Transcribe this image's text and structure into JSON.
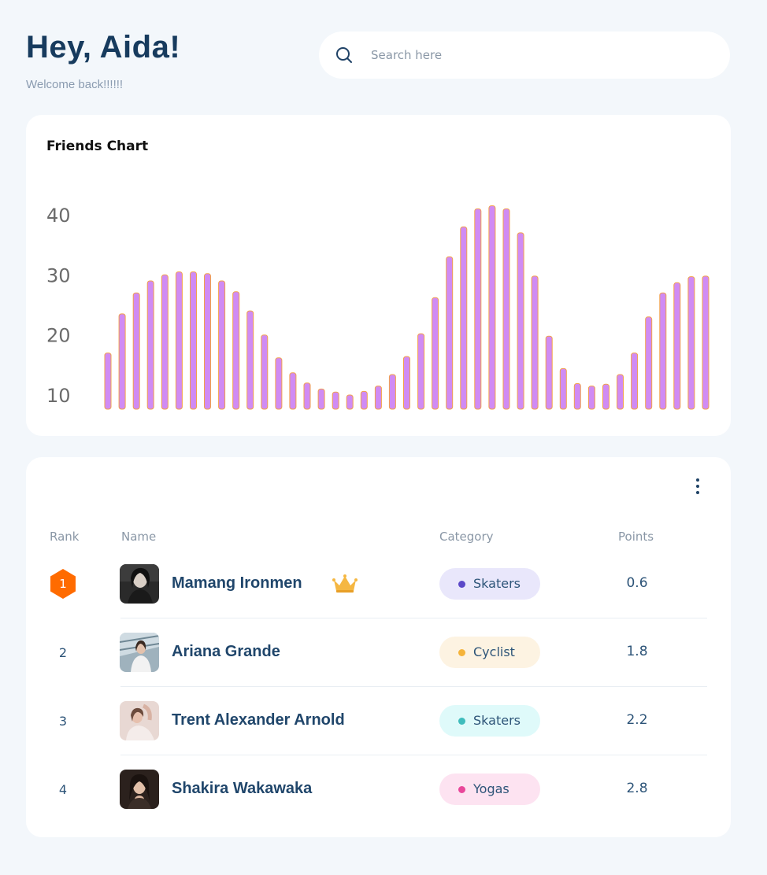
{
  "header": {
    "title": "Hey, Aida!",
    "subtitle": "Welcome back!!!!!!"
  },
  "search": {
    "placeholder": "Search here",
    "value": "",
    "icon": "search-icon"
  },
  "chart_card": {
    "title": "Friends Chart"
  },
  "chart_data": {
    "type": "bar",
    "title": "Friends Chart",
    "xlabel": "",
    "ylabel": "",
    "ylim": [
      8,
      42
    ],
    "yticks": [
      10,
      20,
      30,
      40
    ],
    "grid": false,
    "bar_color": "#d08bf4",
    "bar_edge_color": "#f2a14a",
    "values": [
      17,
      23.5,
      27,
      29,
      30,
      30.5,
      30.5,
      30.2,
      29,
      27.2,
      24,
      20,
      16.2,
      13.7,
      12,
      11,
      10.5,
      10,
      10.6,
      11.5,
      13.4,
      16.4,
      20.2,
      26.2,
      33,
      38,
      41,
      41.5,
      41,
      37,
      29.8,
      19.8,
      14.4,
      11.9,
      11.5,
      11.8,
      13.4,
      17,
      23,
      27,
      28.7,
      29.7,
      29.8
    ]
  },
  "table": {
    "more_icon": "more-vertical-icon",
    "headers": {
      "rank": "Rank",
      "name": "Name",
      "category": "Category",
      "points": "Points"
    },
    "rows": [
      {
        "rank": "1",
        "name": "Mamang Ironmen",
        "category": "Skaters",
        "points": "0.6",
        "badge": "crown-icon",
        "pill_bg": "#e9e7fb",
        "dot": "#5b48c8"
      },
      {
        "rank": "2",
        "name": "Ariana Grande",
        "category": "Cyclist",
        "points": "1.8",
        "pill_bg": "#fdf3e2",
        "dot": "#f5b33a"
      },
      {
        "rank": "3",
        "name": "Trent Alexander Arnold",
        "category": "Skaters",
        "points": "2.2",
        "pill_bg": "#dffafa",
        "dot": "#3fbcbc"
      },
      {
        "rank": "4",
        "name": "Shakira Wakawaka",
        "category": "Yogas",
        "points": "2.8",
        "pill_bg": "#fde3f1",
        "dot": "#e9479a"
      }
    ]
  },
  "colors": {
    "background": "#f3f7fb",
    "card": "#ffffff",
    "rank_badge": "#ff6b00",
    "crown": "#f5b742"
  }
}
